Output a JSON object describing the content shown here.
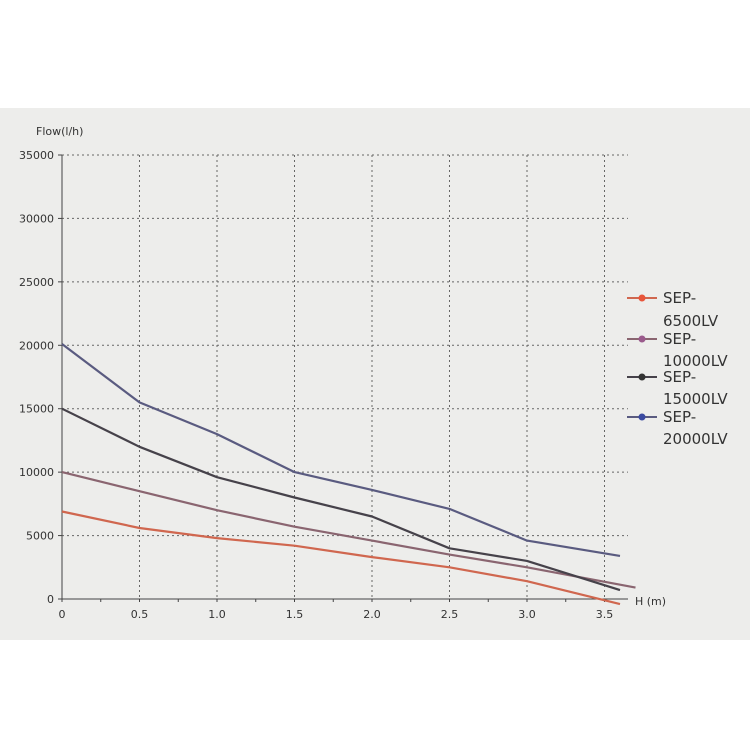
{
  "chart_data": {
    "type": "line",
    "ylabel": "Flow(l/h)",
    "xlabel": "H (m)",
    "xlim": [
      0,
      3.6
    ],
    "ylim": [
      0,
      35000
    ],
    "x_ticks": [
      "0",
      "0.5",
      "1.0",
      "1.5",
      "2.0",
      "2.5",
      "3.0",
      "3.5"
    ],
    "y_ticks": [
      "0",
      "5000",
      "10000",
      "15000",
      "20000",
      "25000",
      "30000",
      "35000"
    ],
    "grid": true,
    "legend_position": "right",
    "series": [
      {
        "name": "SEP-6500LV",
        "color": "#d0674f",
        "marker_color": "#e8553a",
        "points": [
          [
            0,
            6900
          ],
          [
            0.5,
            5600
          ],
          [
            1.0,
            4800
          ],
          [
            1.5,
            4200
          ],
          [
            2.0,
            3300
          ],
          [
            2.5,
            2500
          ],
          [
            3.0,
            1400
          ],
          [
            3.6,
            -400
          ]
        ]
      },
      {
        "name": "SEP-10000LV",
        "color": "#8a6570",
        "marker_color": "#9a5a8c",
        "points": [
          [
            0,
            10000
          ],
          [
            0.5,
            8500
          ],
          [
            1.0,
            7000
          ],
          [
            1.5,
            5700
          ],
          [
            2.0,
            4600
          ],
          [
            2.5,
            3500
          ],
          [
            3.0,
            2500
          ],
          [
            3.7,
            900
          ]
        ]
      },
      {
        "name": "SEP-15000LV",
        "color": "#46424a",
        "marker_color": "#333333",
        "points": [
          [
            0,
            15000
          ],
          [
            0.5,
            12000
          ],
          [
            1.0,
            9600
          ],
          [
            1.5,
            8000
          ],
          [
            2.0,
            6500
          ],
          [
            2.5,
            4000
          ],
          [
            3.0,
            3000
          ],
          [
            3.6,
            700
          ]
        ]
      },
      {
        "name": "SEP-20000LV",
        "color": "#5a5b80",
        "marker_color": "#3a4aa0",
        "points": [
          [
            0,
            20100
          ],
          [
            0.5,
            15500
          ],
          [
            1.0,
            13000
          ],
          [
            1.5,
            10000
          ],
          [
            2.0,
            8600
          ],
          [
            2.5,
            7100
          ],
          [
            3.0,
            4600
          ],
          [
            3.6,
            3400
          ]
        ]
      }
    ]
  },
  "legend": {
    "entries": [
      {
        "line1": "SEP-",
        "line2": "6500LV"
      },
      {
        "line1": "SEP-",
        "line2": "10000LV"
      },
      {
        "line1": "SEP-",
        "line2": "15000LV"
      },
      {
        "line1": "SEP-",
        "line2": "20000LV"
      }
    ]
  }
}
